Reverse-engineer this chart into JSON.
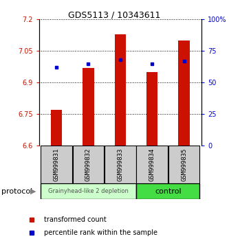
{
  "title": "GDS5113 / 10343611",
  "samples": [
    "GSM999831",
    "GSM999832",
    "GSM999833",
    "GSM999834",
    "GSM999835"
  ],
  "bar_values": [
    6.77,
    6.97,
    7.13,
    6.95,
    7.1
  ],
  "percentile_values": [
    62,
    65,
    68,
    65,
    67
  ],
  "bar_bottom": 6.6,
  "ylim_left": [
    6.6,
    7.2
  ],
  "ylim_right": [
    0,
    100
  ],
  "yticks_left": [
    6.6,
    6.75,
    6.9,
    7.05,
    7.2
  ],
  "yticks_right": [
    0,
    25,
    50,
    75,
    100
  ],
  "ytick_labels_left": [
    "6.6",
    "6.75",
    "6.9",
    "7.05",
    "7.2"
  ],
  "ytick_labels_right": [
    "0",
    "25",
    "50",
    "75",
    "100%"
  ],
  "bar_color": "#cc1100",
  "blue_color": "#0000cc",
  "group1_label": "Grainyhead-like 2 depletion",
  "group2_label": "control",
  "group1_color": "#ccffcc",
  "group2_color": "#44dd44",
  "protocol_label": "protocol",
  "legend1": "transformed count",
  "legend2": "percentile rank within the sample",
  "bar_width": 0.35,
  "plot_bg": "#ffffff",
  "tick_label_color_left": "#cc1100",
  "tick_label_color_right": "#0000cc",
  "sample_box_color": "#cccccc",
  "title_fontsize": 9,
  "tick_fontsize": 7,
  "sample_fontsize": 6.5,
  "legend_fontsize": 7,
  "group_fontsize1": 6,
  "group_fontsize2": 8
}
